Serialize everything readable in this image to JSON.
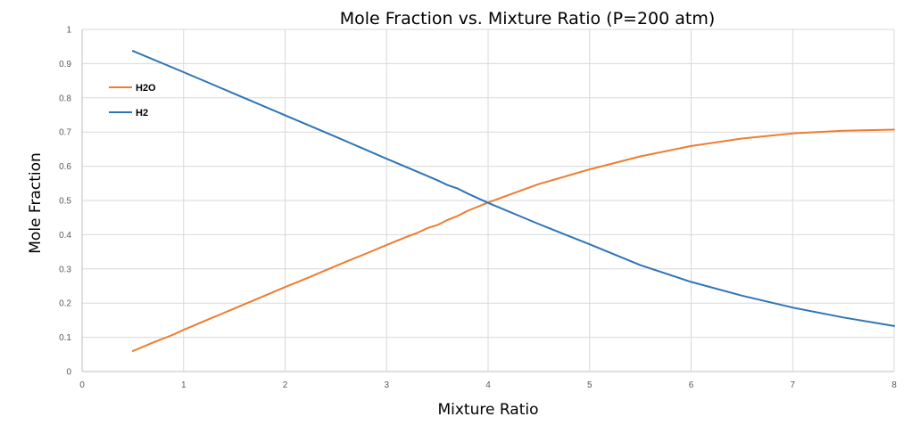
{
  "chart_data": {
    "type": "line",
    "title": "Mole Fraction vs. Mixture Ratio (P=200 atm)",
    "xlabel": "Mixture Ratio",
    "ylabel": "Mole Fraction",
    "xlim": [
      0,
      8
    ],
    "ylim": [
      0,
      1
    ],
    "x_ticks": [
      "0",
      "1",
      "2",
      "3",
      "4",
      "5",
      "6",
      "7",
      "8"
    ],
    "y_ticks": [
      "0",
      "0.1",
      "0.2",
      "0.3",
      "0.4",
      "0.5",
      "0.6",
      "0.7",
      "0.8",
      "0.9",
      "1"
    ],
    "grid": true,
    "legend_position": "top-left",
    "series": [
      {
        "name": "H2O",
        "color": "#ed7d31",
        "x": [
          0.5,
          0.7,
          0.9,
          1.0,
          1.2,
          1.4,
          1.6,
          1.8,
          2.0,
          2.2,
          2.4,
          2.6,
          2.8,
          3.0,
          3.2,
          3.3,
          3.4,
          3.5,
          3.6,
          3.7,
          3.8,
          4.0,
          4.2,
          4.5,
          5.0,
          5.5,
          6.0,
          6.5,
          7.0,
          7.5,
          8.0
        ],
        "y": [
          0.06,
          0.085,
          0.108,
          0.122,
          0.147,
          0.172,
          0.197,
          0.222,
          0.247,
          0.271,
          0.296,
          0.321,
          0.345,
          0.37,
          0.394,
          0.405,
          0.419,
          0.428,
          0.443,
          0.455,
          0.47,
          0.494,
          0.516,
          0.548,
          0.591,
          0.629,
          0.659,
          0.681,
          0.696,
          0.704,
          0.707
        ]
      },
      {
        "name": "H2",
        "color": "#2e75b6",
        "x": [
          0.5,
          1.0,
          1.5,
          2.0,
          2.5,
          3.0,
          3.4,
          3.5,
          3.6,
          3.7,
          3.8,
          4.0,
          4.5,
          5.0,
          5.5,
          6.0,
          6.5,
          7.0,
          7.5,
          8.0
        ],
        "y": [
          0.937,
          0.875,
          0.812,
          0.749,
          0.686,
          0.622,
          0.572,
          0.559,
          0.545,
          0.535,
          0.52,
          0.493,
          0.431,
          0.372,
          0.311,
          0.262,
          0.222,
          0.187,
          0.158,
          0.133
        ]
      }
    ]
  }
}
